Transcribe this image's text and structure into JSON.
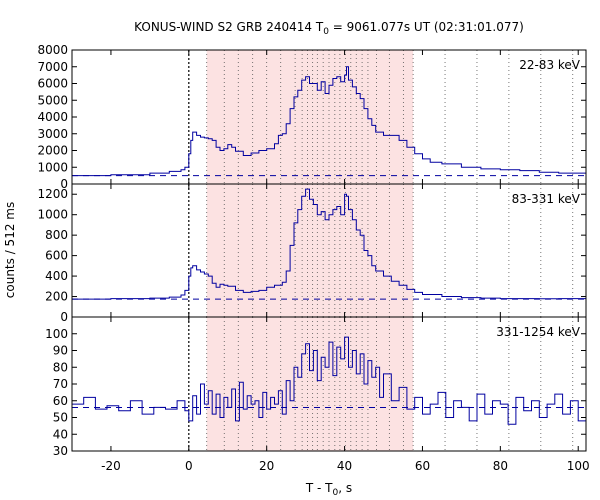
{
  "figure": {
    "title_prefix": "KONUS-WIND S2 GRB 240414 T",
    "title_sub": "0",
    "title_suffix": " = 9061.077s UT (02:31:01.077)",
    "ylabel": "counts / 512 ms",
    "xlabel_prefix": "T - T",
    "xlabel_sub": "0",
    "xlabel_suffix": ", s"
  },
  "colors": {
    "series": "#0000a0",
    "background_line": "#0000a0",
    "shade": "#fce2e2",
    "frame": "#000000"
  },
  "chart_data": [
    {
      "type": "line",
      "band": "22-83 keV",
      "xlim": [
        -30,
        102
      ],
      "ylim": [
        0,
        8000
      ],
      "yticks": [
        0,
        1000,
        2000,
        3000,
        4000,
        5000,
        6000,
        7000,
        8000
      ],
      "xticks": [
        -20,
        0,
        20,
        40,
        60,
        80,
        100
      ],
      "background_level": 500,
      "series": [
        {
          "x": [
            -30,
            -20,
            -10,
            -5,
            -2,
            -1,
            0,
            0.5,
            1,
            2,
            3,
            4,
            5,
            6,
            7,
            8,
            9,
            10,
            11,
            12,
            14,
            16,
            18,
            20,
            22,
            23,
            24,
            25,
            26,
            27,
            28,
            29,
            30,
            31,
            32,
            33,
            34,
            35,
            36,
            37,
            38,
            39,
            40,
            40.5,
            41,
            42,
            43,
            44,
            45,
            46,
            47,
            48,
            50,
            52,
            54,
            56,
            58,
            60,
            62,
            65,
            70,
            75,
            80,
            85,
            90,
            95,
            102
          ],
          "y": [
            500,
            550,
            650,
            750,
            850,
            1000,
            1800,
            2600,
            3100,
            2900,
            2800,
            2750,
            2700,
            2600,
            2200,
            2000,
            2100,
            2350,
            2200,
            1950,
            1700,
            1850,
            2000,
            2100,
            2400,
            2900,
            3000,
            3600,
            4500,
            5200,
            5600,
            6200,
            6400,
            6000,
            6000,
            5600,
            6100,
            5400,
            5900,
            6300,
            6400,
            6100,
            6500,
            7000,
            6200,
            5800,
            5400,
            5100,
            4500,
            3900,
            3500,
            3100,
            2900,
            2900,
            2600,
            2200,
            1800,
            1500,
            1300,
            1200,
            1000,
            900,
            850,
            800,
            700,
            650,
            550
          ]
        }
      ]
    },
    {
      "type": "line",
      "band": "83-331 keV",
      "xlim": [
        -30,
        102
      ],
      "ylim": [
        0,
        1300
      ],
      "yticks": [
        0,
        200,
        400,
        600,
        800,
        1000,
        1200
      ],
      "xticks": [
        -20,
        0,
        20,
        40,
        60,
        80,
        100
      ],
      "background_level": 175,
      "series": [
        {
          "x": [
            -30,
            -20,
            -10,
            -5,
            -2,
            -1,
            0,
            0.5,
            1,
            2,
            3,
            4,
            5,
            6,
            7,
            8,
            9,
            10,
            12,
            14,
            16,
            18,
            20,
            22,
            24,
            25,
            26,
            27,
            28,
            29,
            30,
            31,
            32,
            33,
            34,
            35,
            36,
            37,
            38,
            39,
            40,
            40.5,
            41,
            42,
            43,
            44,
            45,
            46,
            47,
            48,
            50,
            52,
            54,
            56,
            58,
            60,
            65,
            70,
            75,
            80,
            85,
            90,
            95,
            102
          ],
          "y": [
            175,
            180,
            185,
            195,
            215,
            260,
            400,
            480,
            500,
            460,
            440,
            420,
            400,
            330,
            290,
            320,
            310,
            300,
            260,
            240,
            250,
            260,
            290,
            310,
            340,
            450,
            700,
            920,
            1050,
            1180,
            1250,
            1150,
            1100,
            1000,
            1030,
            950,
            1000,
            1050,
            1080,
            1000,
            1200,
            1180,
            1050,
            950,
            850,
            800,
            650,
            600,
            500,
            450,
            400,
            350,
            310,
            270,
            240,
            220,
            200,
            190,
            185,
            180,
            180,
            178,
            180,
            185
          ]
        }
      ]
    },
    {
      "type": "line",
      "band": "331-1254 keV",
      "xlim": [
        -30,
        102
      ],
      "ylim": [
        30,
        110
      ],
      "yticks": [
        30,
        40,
        50,
        60,
        70,
        80,
        90,
        100
      ],
      "xticks": [
        -20,
        0,
        20,
        40,
        60,
        80,
        100
      ],
      "background_level": 56,
      "series": [
        {
          "x": [
            -30,
            -27,
            -24,
            -21,
            -18,
            -15,
            -12,
            -9,
            -6,
            -3,
            -1,
            0,
            1,
            2,
            3,
            4,
            5,
            6,
            7,
            8,
            9,
            10,
            11,
            12,
            13,
            14,
            15,
            16,
            17,
            18,
            19,
            20,
            21,
            22,
            23,
            24,
            25,
            26,
            27,
            28,
            29,
            30,
            31,
            32,
            33,
            34,
            35,
            36,
            37,
            38,
            39,
            40,
            41,
            42,
            43,
            44,
            45,
            46,
            47,
            48,
            49,
            50,
            52,
            54,
            56,
            58,
            60,
            62,
            64,
            66,
            68,
            70,
            72,
            74,
            76,
            78,
            80,
            82,
            84,
            86,
            88,
            90,
            92,
            94,
            96,
            98,
            100,
            102
          ],
          "y": [
            58,
            62,
            55,
            57,
            54,
            60,
            52,
            56,
            55,
            60,
            54,
            48,
            63,
            52,
            70,
            58,
            66,
            52,
            64,
            50,
            62,
            56,
            67,
            48,
            71,
            55,
            63,
            58,
            60,
            50,
            65,
            55,
            62,
            58,
            66,
            52,
            72,
            60,
            80,
            74,
            88,
            94,
            78,
            90,
            72,
            86,
            80,
            95,
            75,
            92,
            85,
            98,
            80,
            90,
            76,
            88,
            70,
            84,
            74,
            80,
            62,
            76,
            60,
            68,
            55,
            62,
            52,
            58,
            65,
            50,
            60,
            56,
            48,
            64,
            52,
            60,
            58,
            46,
            62,
            54,
            60,
            50,
            58,
            64,
            52,
            60,
            48,
            56
          ]
        }
      ]
    }
  ]
}
